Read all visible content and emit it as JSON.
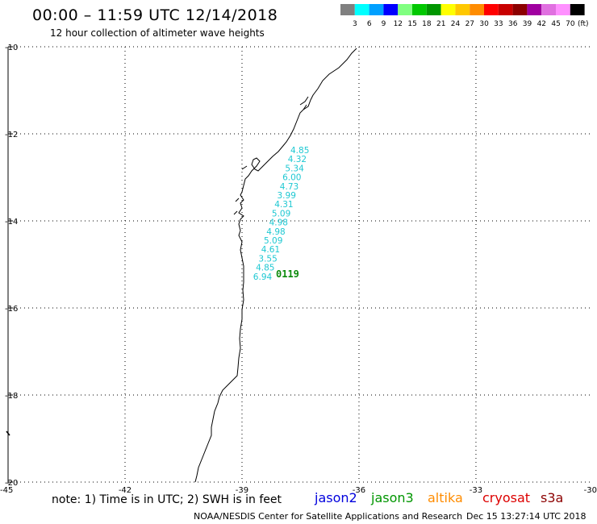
{
  "header": {
    "title": "00:00 – 11:59 UTC 12/14/2018",
    "subtitle": "12 hour collection of altimeter wave heights"
  },
  "legend": {
    "unit": "(ft)",
    "items": [
      {
        "label": "3",
        "color": "#808080"
      },
      {
        "label": "6",
        "color": "#00ffff"
      },
      {
        "label": "9",
        "color": "#00a0ff"
      },
      {
        "label": "12",
        "color": "#0000ff"
      },
      {
        "label": "15",
        "color": "#80ff80"
      },
      {
        "label": "18",
        "color": "#00c800"
      },
      {
        "label": "21",
        "color": "#009600"
      },
      {
        "label": "24",
        "color": "#ffff00"
      },
      {
        "label": "27",
        "color": "#ffc800"
      },
      {
        "label": "30",
        "color": "#ff8c00"
      },
      {
        "label": "33",
        "color": "#ff0000"
      },
      {
        "label": "36",
        "color": "#c80000"
      },
      {
        "label": "39",
        "color": "#8c0000"
      },
      {
        "label": "42",
        "color": "#a000a0"
      },
      {
        "label": "45",
        "color": "#e070e0"
      },
      {
        "label": "70",
        "color": "#ff90ff"
      },
      {
        "label": "",
        "color": "#000000"
      }
    ]
  },
  "axes": {
    "lat_labels": [
      "-10",
      "-12",
      "-14",
      "-16",
      "-18",
      "-20"
    ],
    "lon_labels": [
      "-45",
      "-42",
      "-39",
      "-36",
      "-33",
      "-30"
    ]
  },
  "observations": {
    "values": [
      "4.85",
      "4.32",
      "5.34",
      "6.00",
      "4.73",
      "3.99",
      "4.31",
      "5.09",
      "4.98",
      "4.98",
      "5.09",
      "4.61",
      "3.55",
      "4.85",
      "6.94"
    ],
    "pass_id": "0119",
    "color": "#1ec8d2",
    "pass_color": "#0a8a0a"
  },
  "footer": {
    "note": "note: 1) Time is in UTC; 2) SWH is in feet",
    "satellites": [
      {
        "name": "jason2",
        "color": "#0000dd"
      },
      {
        "name": "jason3",
        "color": "#009600"
      },
      {
        "name": "altika",
        "color": "#ff8c00"
      },
      {
        "name": "cryosat",
        "color": "#dd0000"
      },
      {
        "name": "s3a",
        "color": "#8c0000"
      }
    ],
    "credit": "NOAA/NESDIS Center for Satellite Applications and Research",
    "timestamp": "Dec 15 13:27:14 UTC 2018"
  }
}
